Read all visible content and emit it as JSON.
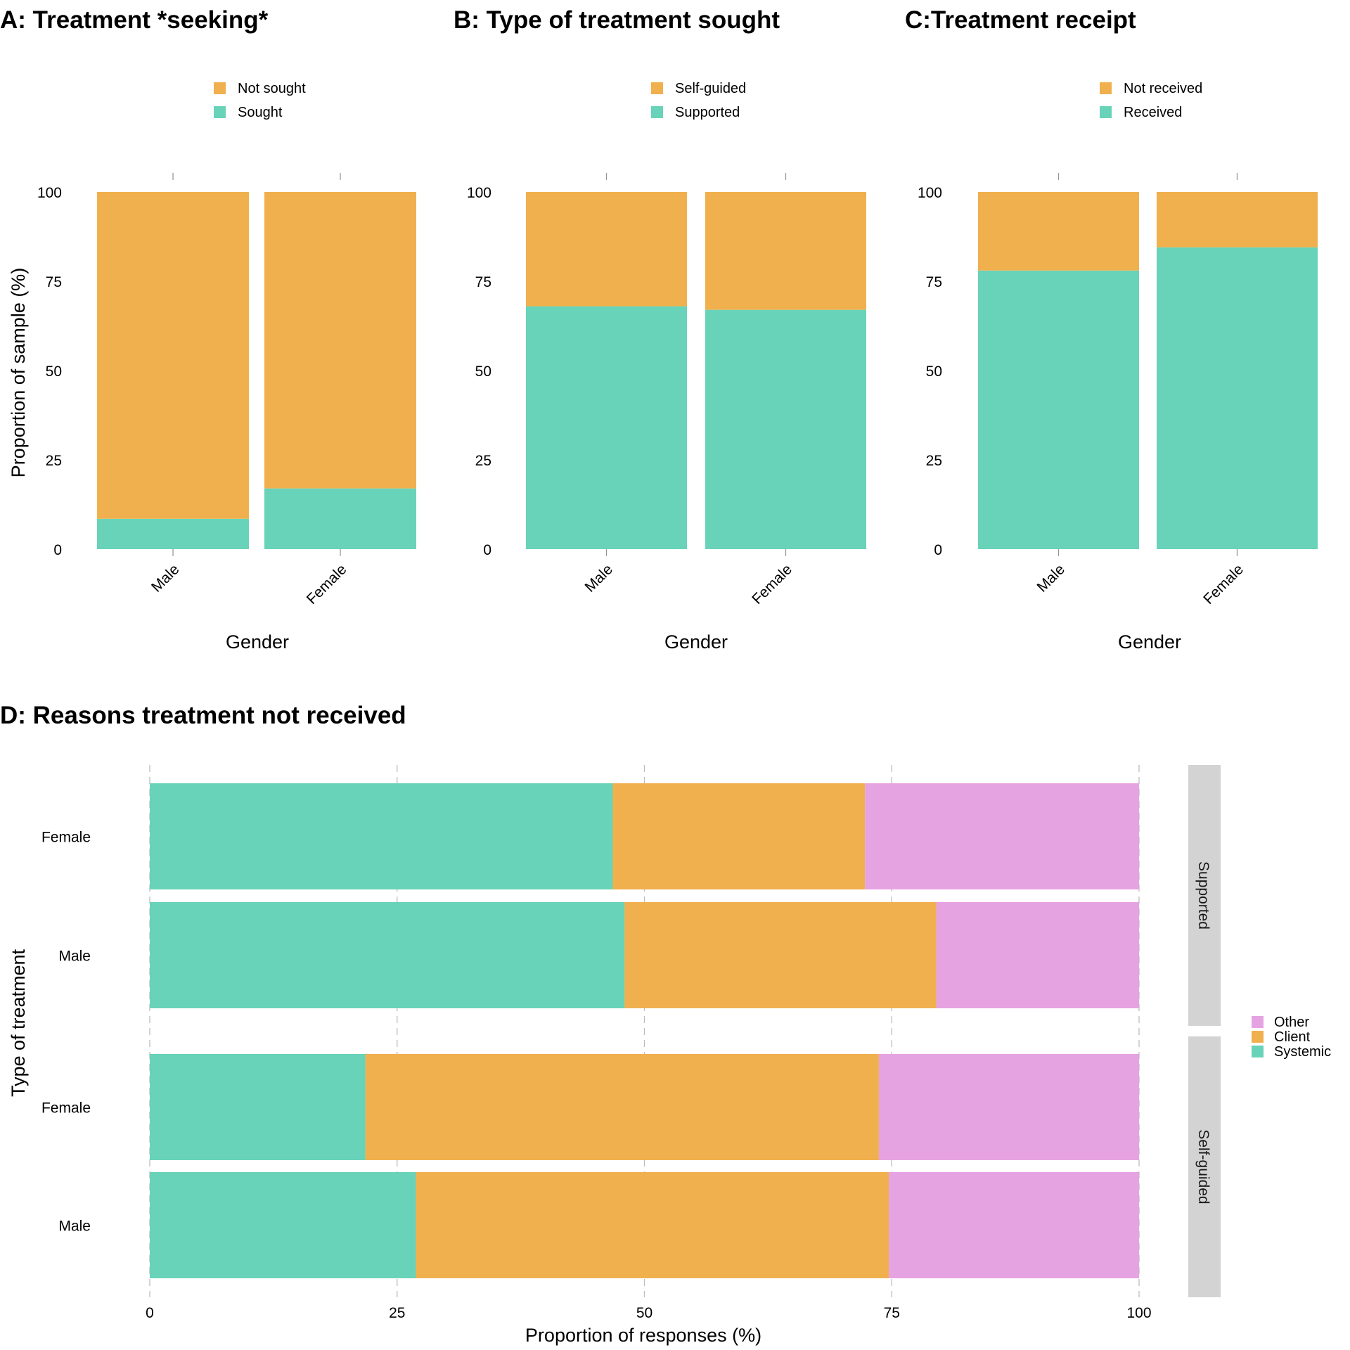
{
  "colors": {
    "orange": "#F0B04E",
    "teal": "#68D3B8",
    "pink": "#E6A3E2",
    "strip": "#D3D3D3"
  },
  "chart_data": [
    {
      "type": "bar",
      "title": "A: Treatment *seeking*",
      "xlabel": "Gender",
      "ylabel": "Proportion of sample (%)",
      "categories": [
        "Male",
        "Female"
      ],
      "ylim": [
        0,
        100
      ],
      "yticks": [
        "0",
        "25",
        "50",
        "75",
        "100"
      ],
      "legend_position": "top",
      "series": [
        {
          "name": "Sought",
          "color": "teal",
          "values": [
            8.5,
            17
          ]
        },
        {
          "name": "Not sought",
          "color": "orange",
          "values": [
            91.5,
            83
          ]
        }
      ]
    },
    {
      "type": "bar",
      "title": "B: Type of treatment sought",
      "xlabel": "Gender",
      "ylabel": "",
      "categories": [
        "Male",
        "Female"
      ],
      "ylim": [
        0,
        100
      ],
      "yticks": [
        "0",
        "25",
        "50",
        "75",
        "100"
      ],
      "legend_position": "top",
      "series": [
        {
          "name": "Supported",
          "color": "teal",
          "values": [
            68,
            67
          ]
        },
        {
          "name": "Self-guided",
          "color": "orange",
          "values": [
            32,
            33
          ]
        }
      ]
    },
    {
      "type": "bar",
      "title": "C:Treatment receipt",
      "xlabel": "Gender",
      "ylabel": "",
      "categories": [
        "Male",
        "Female"
      ],
      "ylim": [
        0,
        100
      ],
      "yticks": [
        "0",
        "25",
        "50",
        "75",
        "100"
      ],
      "legend_position": "top",
      "series": [
        {
          "name": "Received",
          "color": "teal",
          "values": [
            78,
            84.5
          ]
        },
        {
          "name": "Not received",
          "color": "orange",
          "values": [
            22,
            15.5
          ]
        }
      ]
    },
    {
      "type": "bar",
      "orientation": "horizontal",
      "title": "D: Reasons treatment not received",
      "xlabel": "Proportion of responses (%)",
      "ylabel": "Type of treatment",
      "xlim": [
        0,
        100
      ],
      "xticks": [
        "0",
        "25",
        "50",
        "75",
        "100"
      ],
      "legend_position": "right",
      "legend_order": [
        "Other",
        "Client",
        "Systemic"
      ],
      "series_colors": {
        "Systemic": "teal",
        "Client": "orange",
        "Other": "pink"
      },
      "facets": [
        {
          "label": "Supported",
          "rows": [
            {
              "label": "Female",
              "values": {
                "Systemic": 46.8,
                "Client": 25.5,
                "Other": 27.7
              }
            },
            {
              "label": "Male",
              "values": {
                "Systemic": 48,
                "Client": 31.5,
                "Other": 20.5
              }
            }
          ]
        },
        {
          "label": "Self-guided",
          "rows": [
            {
              "label": "Female",
              "values": {
                "Systemic": 21.8,
                "Client": 51.9,
                "Other": 26.3
              }
            },
            {
              "label": "Male",
              "values": {
                "Systemic": 26.9,
                "Client": 47.8,
                "Other": 25.3
              }
            }
          ]
        }
      ]
    }
  ]
}
